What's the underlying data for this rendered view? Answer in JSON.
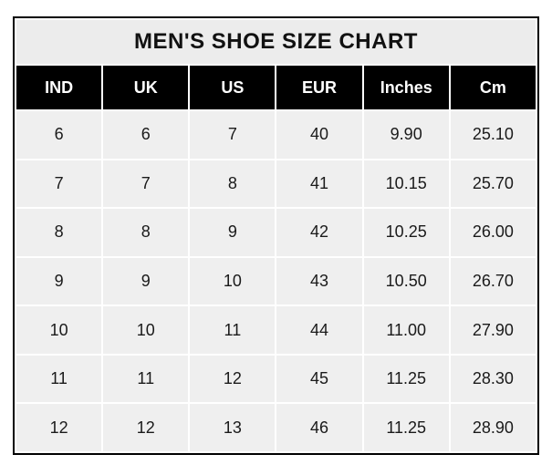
{
  "chart_data": {
    "type": "table",
    "title": "MEN'S SHOE SIZE CHART",
    "columns": [
      "IND",
      "UK",
      "US",
      "EUR",
      "Inches",
      "Cm"
    ],
    "rows": [
      [
        "6",
        "6",
        "7",
        "40",
        "9.90",
        "25.10"
      ],
      [
        "7",
        "7",
        "8",
        "41",
        "10.15",
        "25.70"
      ],
      [
        "8",
        "8",
        "9",
        "42",
        "10.25",
        "26.00"
      ],
      [
        "9",
        "9",
        "10",
        "43",
        "10.50",
        "26.70"
      ],
      [
        "10",
        "10",
        "11",
        "44",
        "11.00",
        "27.90"
      ],
      [
        "11",
        "11",
        "12",
        "45",
        "11.25",
        "28.30"
      ],
      [
        "12",
        "12",
        "13",
        "46",
        "11.25",
        "28.90"
      ]
    ],
    "colors": {
      "border": "#000000",
      "title_background": "#ececec",
      "header_background": "#000000",
      "header_text": "#ffffff",
      "cell_background": "#efefef",
      "cell_text": "#1a1a1a",
      "gridline_gap": "#ffffff",
      "page_background": "#ffffff"
    },
    "layout": {
      "column_count": 6,
      "row_count": 7,
      "grid": "white 2px gaps between cells"
    }
  }
}
